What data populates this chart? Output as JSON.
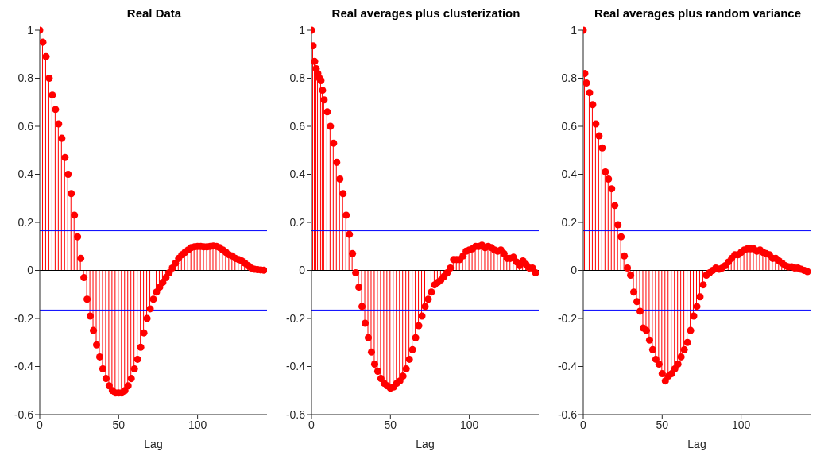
{
  "chart_data": [
    {
      "type": "lollipop",
      "title": "Real Data",
      "xlabel": "Lag",
      "xlim": [
        0,
        144
      ],
      "xticks": [
        0,
        50,
        100
      ],
      "ylim": [
        -0.6,
        1
      ],
      "yticks": [
        -0.6,
        -0.4,
        -0.2,
        0,
        0.2,
        0.4,
        0.6,
        0.8,
        1
      ],
      "grid": false,
      "legend": false,
      "marker": "circle",
      "color": "#ff0000",
      "x": [
        0,
        2,
        4,
        6,
        8,
        10,
        12,
        14,
        16,
        18,
        20,
        22,
        24,
        26,
        28,
        30,
        32,
        34,
        36,
        38,
        40,
        42,
        44,
        46,
        48,
        50,
        52,
        54,
        56,
        58,
        60,
        62,
        64,
        66,
        68,
        70,
        72,
        74,
        76,
        78,
        80,
        82,
        84,
        86,
        88,
        90,
        92,
        94,
        96,
        98,
        100,
        102,
        104,
        106,
        108,
        110,
        112,
        114,
        116,
        118,
        120,
        122,
        124,
        126,
        128,
        130,
        132,
        134,
        136,
        138,
        140,
        142
      ],
      "values": [
        1.0,
        0.95,
        0.89,
        0.8,
        0.73,
        0.67,
        0.61,
        0.55,
        0.47,
        0.4,
        0.32,
        0.23,
        0.14,
        0.05,
        -0.03,
        -0.12,
        -0.19,
        -0.25,
        -0.31,
        -0.36,
        -0.41,
        -0.45,
        -0.48,
        -0.5,
        -0.51,
        -0.51,
        -0.51,
        -0.5,
        -0.48,
        -0.45,
        -0.41,
        -0.37,
        -0.32,
        -0.26,
        -0.2,
        -0.16,
        -0.12,
        -0.09,
        -0.07,
        -0.05,
        -0.03,
        -0.01,
        0.01,
        0.03,
        0.05,
        0.065,
        0.075,
        0.085,
        0.095,
        0.098,
        0.1,
        0.1,
        0.098,
        0.098,
        0.1,
        0.102,
        0.1,
        0.095,
        0.085,
        0.075,
        0.065,
        0.06,
        0.05,
        0.045,
        0.04,
        0.03,
        0.02,
        0.01,
        0.005,
        0.003,
        0.002,
        0.001
      ],
      "ref_lines": [
        {
          "axis": "y",
          "value": 0,
          "color": "#000000"
        },
        {
          "axis": "y",
          "value": 0.165,
          "color": "#0000ff"
        },
        {
          "axis": "y",
          "value": -0.165,
          "color": "#0000ff"
        }
      ]
    },
    {
      "type": "lollipop",
      "title": "Real averages plus clusterization",
      "xlabel": "Lag",
      "xlim": [
        0,
        144
      ],
      "xticks": [
        0,
        50,
        100
      ],
      "ylim": [
        -0.6,
        1
      ],
      "yticks": [
        -0.6,
        -0.4,
        -0.2,
        0,
        0.2,
        0.4,
        0.6,
        0.8,
        1
      ],
      "grid": false,
      "legend": false,
      "marker": "circle",
      "color": "#ff0000",
      "x": [
        0,
        1,
        2,
        3,
        4,
        5,
        6,
        7,
        8,
        10,
        12,
        14,
        16,
        18,
        20,
        22,
        24,
        26,
        28,
        30,
        32,
        34,
        36,
        38,
        40,
        42,
        44,
        46,
        48,
        50,
        52,
        54,
        56,
        58,
        60,
        62,
        64,
        66,
        68,
        70,
        72,
        74,
        76,
        78,
        80,
        82,
        84,
        86,
        88,
        90,
        92,
        94,
        96,
        98,
        100,
        102,
        104,
        106,
        108,
        110,
        112,
        114,
        116,
        118,
        120,
        122,
        124,
        126,
        128,
        130,
        132,
        134,
        136,
        138,
        140,
        142
      ],
      "values": [
        1.0,
        0.935,
        0.87,
        0.84,
        0.82,
        0.8,
        0.79,
        0.75,
        0.71,
        0.66,
        0.6,
        0.53,
        0.45,
        0.38,
        0.32,
        0.23,
        0.15,
        0.07,
        -0.01,
        -0.07,
        -0.15,
        -0.22,
        -0.28,
        -0.34,
        -0.39,
        -0.42,
        -0.45,
        -0.47,
        -0.48,
        -0.49,
        -0.485,
        -0.47,
        -0.46,
        -0.44,
        -0.41,
        -0.37,
        -0.33,
        -0.28,
        -0.23,
        -0.19,
        -0.15,
        -0.12,
        -0.09,
        -0.06,
        -0.05,
        -0.04,
        -0.025,
        -0.01,
        0.01,
        0.045,
        0.045,
        0.045,
        0.06,
        0.08,
        0.085,
        0.09,
        0.1,
        0.1,
        0.105,
        0.095,
        0.1,
        0.095,
        0.085,
        0.08,
        0.085,
        0.07,
        0.05,
        0.05,
        0.055,
        0.035,
        0.02,
        0.04,
        0.025,
        0.01,
        0.01,
        -0.01
      ],
      "ref_lines": [
        {
          "axis": "y",
          "value": 0,
          "color": "#000000"
        },
        {
          "axis": "y",
          "value": 0.165,
          "color": "#0000ff"
        },
        {
          "axis": "y",
          "value": -0.165,
          "color": "#0000ff"
        }
      ]
    },
    {
      "type": "lollipop",
      "title": "Real averages plus random variance",
      "xlabel": "Lag",
      "xlim": [
        0,
        144
      ],
      "xticks": [
        0,
        50,
        100
      ],
      "ylim": [
        -0.6,
        1
      ],
      "yticks": [
        -0.6,
        -0.4,
        -0.2,
        0,
        0.2,
        0.4,
        0.6,
        0.8,
        1
      ],
      "grid": false,
      "legend": false,
      "marker": "circle",
      "color": "#ff0000",
      "x": [
        0,
        1,
        2,
        4,
        6,
        8,
        10,
        12,
        14,
        16,
        18,
        20,
        22,
        24,
        26,
        28,
        30,
        32,
        34,
        36,
        38,
        40,
        42,
        44,
        46,
        48,
        50,
        52,
        54,
        56,
        58,
        60,
        62,
        64,
        66,
        68,
        70,
        72,
        74,
        76,
        78,
        80,
        82,
        84,
        86,
        88,
        90,
        92,
        94,
        96,
        98,
        100,
        102,
        104,
        106,
        108,
        110,
        112,
        114,
        116,
        118,
        120,
        122,
        124,
        126,
        128,
        130,
        132,
        134,
        136,
        138,
        140,
        142
      ],
      "values": [
        1.0,
        0.82,
        0.78,
        0.74,
        0.69,
        0.61,
        0.56,
        0.51,
        0.41,
        0.38,
        0.34,
        0.27,
        0.19,
        0.14,
        0.06,
        0.01,
        -0.02,
        -0.09,
        -0.13,
        -0.17,
        -0.24,
        -0.25,
        -0.29,
        -0.33,
        -0.37,
        -0.39,
        -0.43,
        -0.46,
        -0.44,
        -0.43,
        -0.41,
        -0.39,
        -0.36,
        -0.33,
        -0.3,
        -0.25,
        -0.19,
        -0.15,
        -0.11,
        -0.06,
        -0.02,
        -0.01,
        0.0,
        0.01,
        0.005,
        0.01,
        0.02,
        0.035,
        0.05,
        0.065,
        0.065,
        0.075,
        0.085,
        0.09,
        0.09,
        0.09,
        0.08,
        0.085,
        0.075,
        0.07,
        0.065,
        0.05,
        0.05,
        0.04,
        0.03,
        0.02,
        0.015,
        0.015,
        0.01,
        0.01,
        0.005,
        0.0,
        -0.005
      ],
      "ref_lines": [
        {
          "axis": "y",
          "value": 0,
          "color": "#000000"
        },
        {
          "axis": "y",
          "value": 0.165,
          "color": "#0000ff"
        },
        {
          "axis": "y",
          "value": -0.165,
          "color": "#0000ff"
        }
      ]
    }
  ]
}
